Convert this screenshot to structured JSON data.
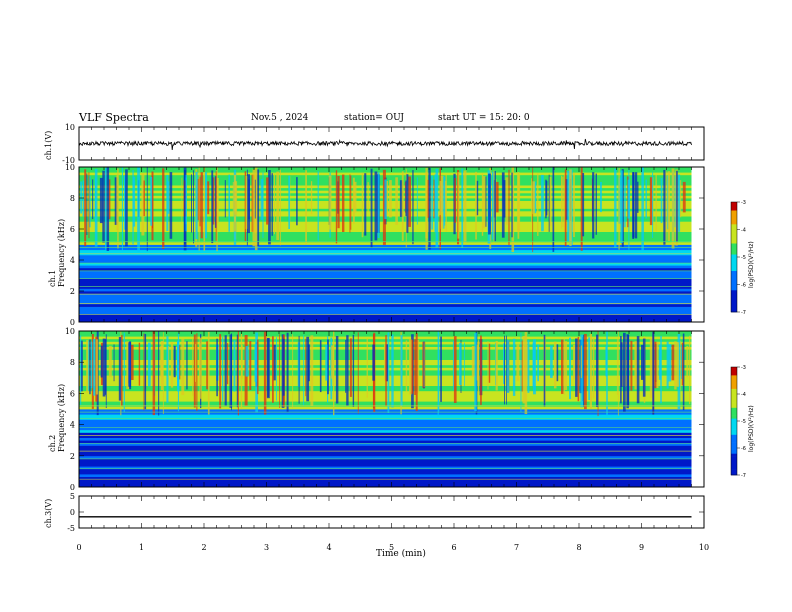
{
  "header": {
    "title": "VLF Spectra",
    "date": "Nov.5 , 2024",
    "station": "station= OUJ",
    "start": "start UT = 15: 20: 0"
  },
  "colors": {
    "low": "#00008b",
    "mid": "#00c8ff",
    "green": "#30e060",
    "yellow": "#d8e020",
    "high": "#c00000"
  },
  "chart_data": [
    {
      "type": "line",
      "name": "ch1-waveform",
      "ylabel": "ch.1(V)",
      "ylim": [
        -10,
        10
      ],
      "yticks": [
        "10",
        "-10"
      ],
      "x_range": [
        0,
        9.8
      ],
      "level": 0,
      "noise_amplitude": 1.2
    },
    {
      "type": "heatmap",
      "name": "ch1-spectrogram",
      "ylabel": "ch.1\nFrequency (kHz)",
      "ylim": [
        0,
        10
      ],
      "yticks": [
        "0",
        "2",
        "4",
        "6",
        "8",
        "10"
      ],
      "x_range": [
        0,
        9.8
      ],
      "colorbar": {
        "label": "log(PSD)(V²/Hz)",
        "ticks": [
          "-3",
          "-4",
          "-5",
          "-6",
          "-7"
        ],
        "range": [
          -7,
          -3
        ]
      }
    },
    {
      "type": "heatmap",
      "name": "ch2-spectrogram",
      "ylabel": "ch.2\nFrequency (kHz)",
      "ylim": [
        0,
        10
      ],
      "yticks": [
        "0",
        "2",
        "4",
        "6",
        "8",
        "10"
      ],
      "x_range": [
        0,
        9.8
      ],
      "colorbar": {
        "label": "log(PSD)(V²/Hz)",
        "ticks": [
          "-3",
          "-4",
          "-5",
          "-6",
          "-7"
        ],
        "range": [
          -7,
          -3
        ]
      }
    },
    {
      "type": "line",
      "name": "ch3-waveform",
      "ylabel": "ch.3(V)",
      "ylim": [
        -5,
        5
      ],
      "yticks": [
        "5",
        "0",
        "-5"
      ],
      "x_range": [
        0,
        9.8
      ],
      "level": -1.5,
      "noise_amplitude": 0
    }
  ],
  "xaxis": {
    "label": "Time (min)",
    "xlim": [
      0,
      10
    ],
    "ticks": [
      "0",
      "1",
      "2",
      "3",
      "4",
      "5",
      "6",
      "7",
      "8",
      "9",
      "10"
    ]
  }
}
